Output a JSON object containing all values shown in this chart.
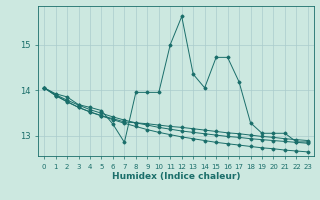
{
  "xlabel": "Humidex (Indice chaleur)",
  "background_color": "#cce8e0",
  "grid_color": "#aacccc",
  "line_color": "#1a6e6a",
  "xlim": [
    -0.5,
    23.5
  ],
  "ylim": [
    12.55,
    15.85
  ],
  "yticks": [
    13,
    14,
    15
  ],
  "xticks": [
    0,
    1,
    2,
    3,
    4,
    5,
    6,
    7,
    8,
    9,
    10,
    11,
    12,
    13,
    14,
    15,
    16,
    17,
    18,
    19,
    20,
    21,
    22,
    23
  ],
  "series": [
    [
      14.05,
      13.92,
      13.85,
      13.68,
      13.62,
      13.55,
      13.25,
      12.85,
      13.95,
      13.95,
      13.95,
      15.0,
      15.62,
      14.35,
      14.05,
      14.72,
      14.72,
      14.18,
      13.28,
      13.05,
      13.05,
      13.05,
      12.86,
      12.86
    ],
    [
      14.05,
      13.88,
      13.75,
      13.62,
      13.52,
      13.43,
      13.35,
      13.27,
      13.2,
      13.13,
      13.07,
      13.02,
      12.97,
      12.93,
      12.89,
      12.85,
      12.82,
      12.79,
      12.76,
      12.73,
      12.71,
      12.68,
      12.66,
      12.64
    ],
    [
      14.05,
      13.9,
      13.78,
      13.67,
      13.57,
      13.49,
      13.41,
      13.34,
      13.28,
      13.23,
      13.18,
      13.14,
      13.1,
      13.07,
      13.04,
      13.01,
      12.98,
      12.96,
      12.93,
      12.91,
      12.89,
      12.87,
      12.85,
      12.83
    ],
    [
      14.05,
      13.88,
      13.74,
      13.62,
      13.52,
      13.44,
      13.37,
      13.3,
      13.28,
      13.26,
      13.23,
      13.2,
      13.18,
      13.15,
      13.12,
      13.09,
      13.06,
      13.04,
      13.01,
      12.98,
      12.96,
      12.93,
      12.91,
      12.89
    ]
  ]
}
